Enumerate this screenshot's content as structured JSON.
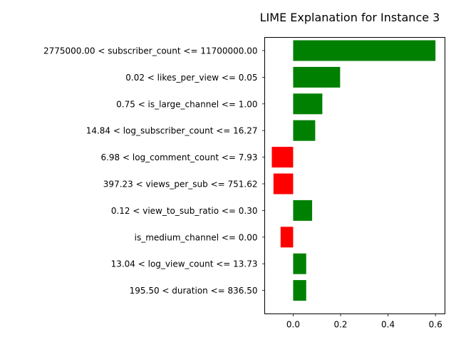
{
  "chart_data": {
    "type": "bar",
    "orientation": "horizontal",
    "title": "LIME Explanation for Instance 3",
    "xlabel": "",
    "ylabel": "",
    "xlim": [
      -0.12,
      0.64
    ],
    "xticks": [
      0.0,
      0.2,
      0.4,
      0.6
    ],
    "xtick_labels": [
      "0.0",
      "0.2",
      "0.4",
      "0.6"
    ],
    "grid": false,
    "colors": {
      "positive": "#008000",
      "negative": "#ff0000"
    },
    "categories": [
      "2775000.00 < subscriber_count <= 11700000.00",
      "0.02 < likes_per_view <= 0.05",
      "0.75 < is_large_channel <= 1.00",
      "14.84 < log_subscriber_count <= 16.27",
      "6.98 < log_comment_count <= 7.93",
      "397.23 < views_per_sub <= 751.62",
      "0.12 < view_to_sub_ratio <= 0.30",
      "is_medium_channel <= 0.00",
      "13.04 < log_view_count <= 13.73",
      "195.50 < duration <= 836.50"
    ],
    "values": [
      0.6,
      0.198,
      0.123,
      0.093,
      -0.09,
      -0.083,
      0.08,
      -0.053,
      0.055,
      0.055
    ]
  }
}
